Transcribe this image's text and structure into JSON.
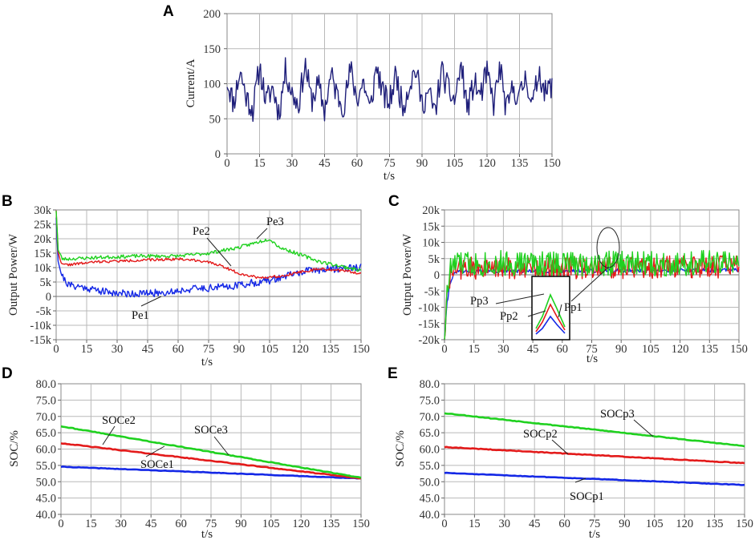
{
  "figure": {
    "panels": [
      "A",
      "B",
      "C",
      "D",
      "E"
    ]
  },
  "chart_data": [
    {
      "id": "A",
      "type": "line",
      "xlabel": "t/s",
      "ylabel": "Current/A",
      "xlim": [
        0,
        150
      ],
      "ylim": [
        0,
        200
      ],
      "xticks": [
        "0",
        "15",
        "30",
        "45",
        "60",
        "75",
        "90",
        "105",
        "120",
        "135",
        "150"
      ],
      "yticks": [
        "0",
        "50",
        "100",
        "150",
        "200"
      ],
      "series": [
        {
          "name": "Current",
          "color": "#1f1f7a",
          "x": [
            0,
            3,
            6,
            9,
            12,
            15,
            18,
            21,
            24,
            27,
            30,
            33,
            36,
            39,
            42,
            45,
            48,
            51,
            54,
            57,
            60,
            63,
            66,
            69,
            72,
            75,
            78,
            81,
            84,
            87,
            90,
            93,
            96,
            99,
            102,
            105,
            108,
            111,
            114,
            117,
            120,
            123,
            126,
            129,
            132,
            135,
            138,
            141,
            144,
            147,
            150
          ],
          "y": [
            105,
            72,
            118,
            80,
            63,
            125,
            74,
            95,
            58,
            120,
            86,
            70,
            128,
            76,
            99,
            62,
            113,
            82,
            69,
            121,
            78,
            104,
            60,
            126,
            84,
            73,
            115,
            66,
            97,
            122,
            71,
            88,
            58,
            119,
            92,
            75,
            127,
            64,
            101,
            83,
            116,
            70,
            124,
            60,
            95,
            79,
            112,
            67,
            120,
            85,
            100
          ],
          "noise": 38,
          "samples": 340,
          "seed": 11
        }
      ]
    },
    {
      "id": "B",
      "type": "line",
      "xlabel": "t/s",
      "ylabel": "Output Power/W",
      "xlim": [
        0,
        150
      ],
      "ylim": [
        -15000,
        30000
      ],
      "xticks": [
        "0",
        "15",
        "30",
        "45",
        "60",
        "75",
        "90",
        "105",
        "120",
        "135",
        "150"
      ],
      "yticks": [
        "-15k",
        "-10k",
        "-5k",
        "0",
        "5k",
        "10k",
        "15k",
        "20k",
        "25k",
        "30k"
      ],
      "series": [
        {
          "name": "Pe1",
          "color": "#1428e6",
          "x": [
            0,
            1,
            3,
            6,
            15,
            25,
            35,
            45,
            55,
            65,
            75,
            85,
            95,
            105,
            115,
            125,
            135,
            145,
            150
          ],
          "y": [
            28000,
            12000,
            7000,
            4000,
            3000,
            1500,
            1000,
            1000,
            1500,
            2500,
            3000,
            3500,
            4500,
            5500,
            7500,
            9000,
            9500,
            10000,
            10000
          ],
          "noise": 2600,
          "samples": 320,
          "seed": 21
        },
        {
          "name": "Pe2",
          "color": "#e31a1a",
          "x": [
            0,
            1,
            3,
            6,
            20,
            40,
            60,
            70,
            80,
            90,
            100,
            110,
            120,
            130,
            140,
            150
          ],
          "y": [
            30000,
            15000,
            11000,
            11000,
            12000,
            12500,
            13000,
            12500,
            11000,
            8000,
            6500,
            7000,
            8500,
            9500,
            9000,
            8000
          ],
          "noise": 900,
          "samples": 300,
          "seed": 22
        },
        {
          "name": "Pe3",
          "color": "#1fd11f",
          "x": [
            0,
            1,
            3,
            6,
            20,
            40,
            60,
            75,
            90,
            100,
            105,
            110,
            120,
            130,
            140,
            150
          ],
          "y": [
            30000,
            16000,
            13000,
            13000,
            13500,
            14000,
            14000,
            15000,
            17000,
            19000,
            20000,
            17000,
            14500,
            12000,
            10500,
            9000
          ],
          "noise": 1200,
          "samples": 300,
          "seed": 23
        }
      ],
      "annotations": [
        "Pe1",
        "Pe2",
        "Pe3"
      ]
    },
    {
      "id": "C",
      "type": "line",
      "xlabel": "t/s",
      "ylabel": "Output Power/W",
      "xlim": [
        0,
        150
      ],
      "ylim": [
        -20000,
        20000
      ],
      "xticks": [
        "0",
        "15",
        "30",
        "45",
        "60",
        "75",
        "90",
        "105",
        "120",
        "135",
        "150"
      ],
      "yticks": [
        "-20k",
        "-15k",
        "-10k",
        "-5k",
        "0",
        "5k",
        "10k",
        "15k",
        "20k"
      ],
      "series": [
        {
          "name": "Pp1",
          "color": "#1428e6",
          "x": [
            0,
            1,
            3,
            6,
            150
          ],
          "y": [
            -20000,
            -10000,
            -2000,
            1000,
            1500
          ],
          "noise": 1200,
          "samples": 340,
          "seed": 31
        },
        {
          "name": "Pp2",
          "color": "#e31a1a",
          "x": [
            0,
            1,
            3,
            6,
            150
          ],
          "y": [
            -20000,
            -9000,
            0,
            2000,
            2500
          ],
          "noise": 7000,
          "samples": 340,
          "seed": 32
        },
        {
          "name": "Pp3",
          "color": "#1fd11f",
          "x": [
            0,
            1,
            3,
            6,
            150
          ],
          "y": [
            -20000,
            -8000,
            2000,
            3500,
            3500
          ],
          "noise": 8000,
          "samples": 340,
          "seed": 33
        }
      ],
      "annotations": [
        "Pp3",
        "Pp2",
        "Pp1"
      ]
    },
    {
      "id": "D",
      "type": "line",
      "xlabel": "t/s",
      "ylabel": "SOC/%",
      "xlim": [
        0,
        150
      ],
      "ylim": [
        40,
        80
      ],
      "xticks": [
        "0",
        "15",
        "30",
        "45",
        "60",
        "75",
        "90",
        "105",
        "120",
        "135",
        "150"
      ],
      "yticks": [
        "40.0",
        "45.0",
        "50.0",
        "55.0",
        "60.0",
        "65.0",
        "70.0",
        "75.0",
        "80.0"
      ],
      "series": [
        {
          "name": "SOCe1",
          "color": "#1428e6",
          "x": [
            0,
            150
          ],
          "y": [
            54.6,
            51.0
          ],
          "noise": 0.15,
          "samples": 150,
          "seed": 41
        },
        {
          "name": "SOCe2",
          "color": "#e31a1a",
          "x": [
            0,
            150
          ],
          "y": [
            61.8,
            51.0
          ],
          "noise": 0.2,
          "samples": 150,
          "seed": 42
        },
        {
          "name": "SOCe3",
          "color": "#1fd11f",
          "x": [
            0,
            150
          ],
          "y": [
            67.0,
            51.2
          ],
          "noise": 0.2,
          "samples": 150,
          "seed": 43
        }
      ],
      "annotations": [
        "SOCe1",
        "SOCe2",
        "SOCe3"
      ]
    },
    {
      "id": "E",
      "type": "line",
      "xlabel": "t/s",
      "ylabel": "SOC/%",
      "xlim": [
        0,
        150
      ],
      "ylim": [
        40,
        80
      ],
      "xticks": [
        "0",
        "15",
        "30",
        "45",
        "60",
        "75",
        "90",
        "105",
        "120",
        "135",
        "150"
      ],
      "yticks": [
        "40.0",
        "45.0",
        "50.0",
        "55.0",
        "60.0",
        "65.0",
        "70.0",
        "75.0",
        "80.0"
      ],
      "series": [
        {
          "name": "SOCp1",
          "color": "#1428e6",
          "x": [
            0,
            150
          ],
          "y": [
            52.7,
            49.0
          ],
          "noise": 0.15,
          "samples": 150,
          "seed": 51
        },
        {
          "name": "SOCp2",
          "color": "#e31a1a",
          "x": [
            0,
            150
          ],
          "y": [
            60.6,
            55.7
          ],
          "noise": 0.2,
          "samples": 150,
          "seed": 52
        },
        {
          "name": "SOCp3",
          "color": "#1fd11f",
          "x": [
            0,
            150
          ],
          "y": [
            71.0,
            60.9
          ],
          "noise": 0.2,
          "samples": 150,
          "seed": 53
        }
      ],
      "annotations": [
        "SOCp1",
        "SOCp2",
        "SOCp3"
      ]
    }
  ]
}
